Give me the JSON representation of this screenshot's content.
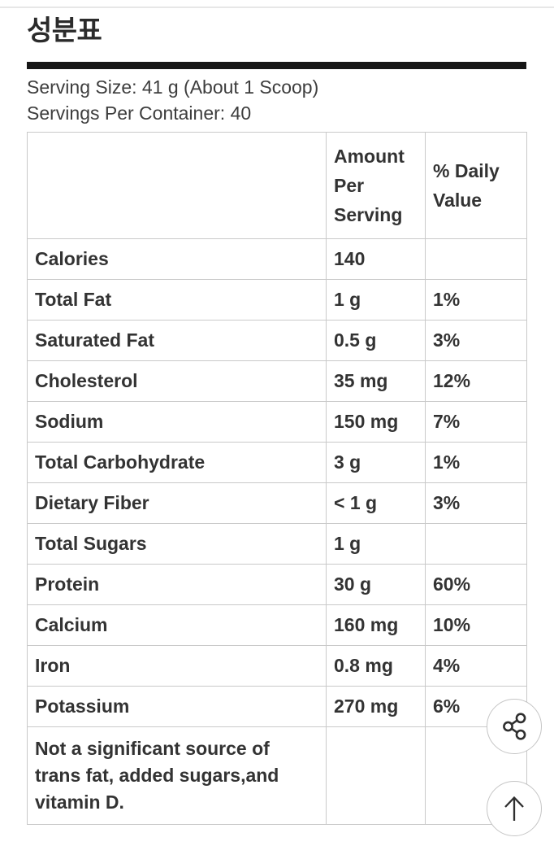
{
  "page": {
    "title": "성분표"
  },
  "serving_info": {
    "serving_size": "Serving Size: 41 g (About 1 Scoop)",
    "servings_per_container": "Servings Per Container: 40"
  },
  "table": {
    "columns": [
      "",
      "Amount Per Serving",
      "% Daily Value"
    ],
    "rows": [
      {
        "label": "Calories",
        "amount": "140",
        "daily_value": ""
      },
      {
        "label": "Total Fat",
        "amount": "1 g",
        "daily_value": "1%"
      },
      {
        "label": "Saturated Fat",
        "amount": "0.5 g",
        "daily_value": "3%"
      },
      {
        "label": "Cholesterol",
        "amount": "35 mg",
        "daily_value": "12%"
      },
      {
        "label": "Sodium",
        "amount": "150 mg",
        "daily_value": "7%"
      },
      {
        "label": "Total Carbohydrate",
        "amount": "3 g",
        "daily_value": "1%"
      },
      {
        "label": "Dietary Fiber",
        "amount": "< 1 g",
        "daily_value": "3%"
      },
      {
        "label": "Total Sugars",
        "amount": "1 g",
        "daily_value": ""
      },
      {
        "label": "Protein",
        "amount": "30 g",
        "daily_value": "60%"
      },
      {
        "label": "Calcium",
        "amount": "160 mg",
        "daily_value": "10%"
      },
      {
        "label": "Iron",
        "amount": "0.8 mg",
        "daily_value": "4%"
      },
      {
        "label": "Potassium",
        "amount": "270 mg",
        "daily_value": "6%"
      },
      {
        "label": "Not a significant source of trans fat, added sugars,and vitamin D.",
        "amount": "",
        "daily_value": ""
      }
    ]
  },
  "floating_buttons": {
    "share_icon": "share-nodes-icon",
    "scroll_top_icon": "arrow-up-icon"
  },
  "colors": {
    "text": "#333333",
    "thick_rule": "#161616",
    "table_border": "#c9c9c9",
    "button_border": "#c5c5c5",
    "top_divider": "#e7e7e7"
  }
}
